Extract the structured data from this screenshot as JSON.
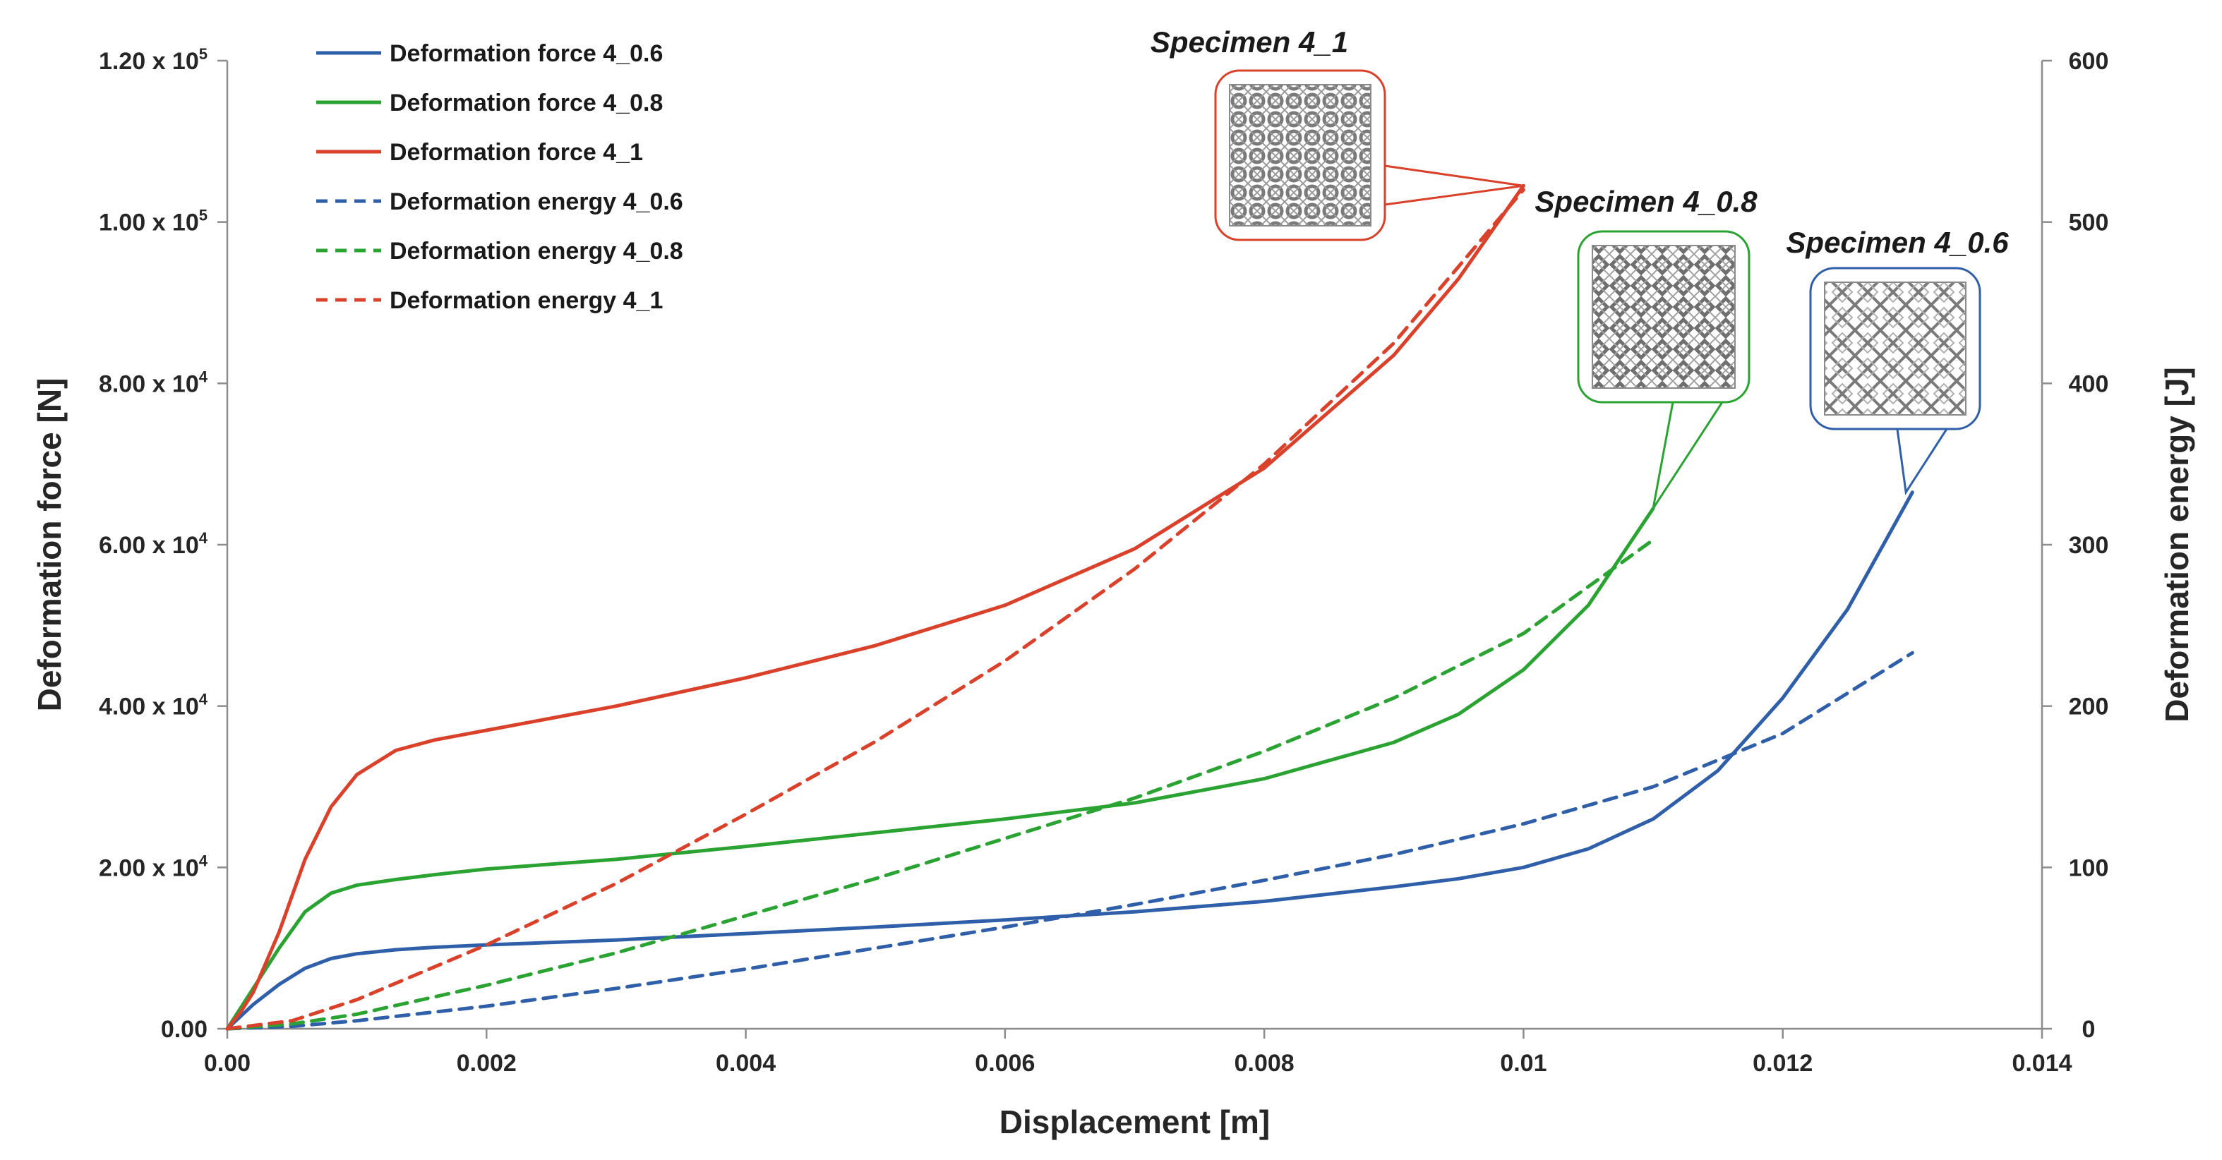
{
  "chart_data": {
    "type": "line",
    "xlabel": "Displacement [m]",
    "ylabel": "Deformation force [N]",
    "y2label": "Deformation energy [J]",
    "xlim": [
      0,
      0.014
    ],
    "ylim": [
      0,
      120000
    ],
    "y2lim": [
      0,
      600
    ],
    "x_ticks": [
      0,
      0.002,
      0.004,
      0.006,
      0.008,
      0.01,
      0.012,
      0.014
    ],
    "x_tick_labels": [
      "0.00",
      "0.002",
      "0.004",
      "0.006",
      "0.008",
      "0.01",
      "0.012",
      "0.014"
    ],
    "y_ticks": [
      0,
      20000,
      40000,
      60000,
      80000,
      100000,
      120000
    ],
    "y_tick_labels": [
      {
        "mant": "0.00",
        "exp": ""
      },
      {
        "mant": "2.00 x 10",
        "exp": "4"
      },
      {
        "mant": "4.00 x 10",
        "exp": "4"
      },
      {
        "mant": "6.00 x 10",
        "exp": "4"
      },
      {
        "mant": "8.00 x 10",
        "exp": "4"
      },
      {
        "mant": "1.00 x 10",
        "exp": "5"
      },
      {
        "mant": "1.20 x 10",
        "exp": "5"
      }
    ],
    "y2_ticks": [
      0,
      100,
      200,
      300,
      400,
      500,
      600
    ],
    "y2_tick_labels": [
      "0",
      "100",
      "200",
      "300",
      "400",
      "500",
      "600"
    ],
    "legend_position": "top-left",
    "series": [
      {
        "name": "Deformation force 4_0.6",
        "axis": "left",
        "style": "solid",
        "color": "#2f5fa8",
        "points": [
          [
            0,
            0
          ],
          [
            0.0001,
            1500
          ],
          [
            0.0002,
            3000
          ],
          [
            0.0004,
            5500
          ],
          [
            0.0006,
            7500
          ],
          [
            0.0008,
            8700
          ],
          [
            0.001,
            9300
          ],
          [
            0.0013,
            9800
          ],
          [
            0.0016,
            10100
          ],
          [
            0.002,
            10400
          ],
          [
            0.003,
            11000
          ],
          [
            0.004,
            11800
          ],
          [
            0.005,
            12600
          ],
          [
            0.006,
            13500
          ],
          [
            0.007,
            14500
          ],
          [
            0.008,
            15800
          ],
          [
            0.009,
            17600
          ],
          [
            0.0095,
            18600
          ],
          [
            0.01,
            20000
          ],
          [
            0.0105,
            22300
          ],
          [
            0.011,
            26000
          ],
          [
            0.0115,
            32000
          ],
          [
            0.012,
            41000
          ],
          [
            0.0125,
            52000
          ],
          [
            0.013,
            66500
          ]
        ]
      },
      {
        "name": "Deformation force 4_0.8",
        "axis": "left",
        "style": "solid",
        "color": "#2aa333",
        "points": [
          [
            0,
            0
          ],
          [
            0.0001,
            2500
          ],
          [
            0.0002,
            5000
          ],
          [
            0.0004,
            10000
          ],
          [
            0.0006,
            14500
          ],
          [
            0.0008,
            16800
          ],
          [
            0.001,
            17800
          ],
          [
            0.0013,
            18500
          ],
          [
            0.0016,
            19100
          ],
          [
            0.002,
            19800
          ],
          [
            0.003,
            21000
          ],
          [
            0.004,
            22600
          ],
          [
            0.005,
            24300
          ],
          [
            0.006,
            26000
          ],
          [
            0.007,
            28000
          ],
          [
            0.008,
            31000
          ],
          [
            0.009,
            35500
          ],
          [
            0.0095,
            39000
          ],
          [
            0.01,
            44500
          ],
          [
            0.0105,
            52500
          ],
          [
            0.011,
            64500
          ]
        ]
      },
      {
        "name": "Deformation force 4_1",
        "axis": "left",
        "style": "solid",
        "color": "#d9412b",
        "points": [
          [
            0,
            0
          ],
          [
            0.0001,
            2000
          ],
          [
            0.0002,
            4500
          ],
          [
            0.0004,
            12000
          ],
          [
            0.0006,
            21000
          ],
          [
            0.0008,
            27500
          ],
          [
            0.001,
            31500
          ],
          [
            0.0013,
            34500
          ],
          [
            0.0016,
            35800
          ],
          [
            0.002,
            37000
          ],
          [
            0.003,
            40000
          ],
          [
            0.004,
            43500
          ],
          [
            0.005,
            47500
          ],
          [
            0.006,
            52500
          ],
          [
            0.007,
            59500
          ],
          [
            0.008,
            69500
          ],
          [
            0.009,
            83500
          ],
          [
            0.0095,
            93000
          ],
          [
            0.01,
            104500
          ]
        ]
      },
      {
        "name": "Deformation energy 4_0.6",
        "axis": "right",
        "style": "dashed",
        "color": "#2f5fa8",
        "points": [
          [
            0,
            0
          ],
          [
            0.0005,
            1.5
          ],
          [
            0.001,
            5
          ],
          [
            0.002,
            14
          ],
          [
            0.003,
            25
          ],
          [
            0.004,
            37
          ],
          [
            0.005,
            50
          ],
          [
            0.006,
            63
          ],
          [
            0.007,
            77
          ],
          [
            0.008,
            92
          ],
          [
            0.009,
            108
          ],
          [
            0.01,
            127
          ],
          [
            0.011,
            150
          ],
          [
            0.012,
            183
          ],
          [
            0.013,
            233
          ]
        ]
      },
      {
        "name": "Deformation energy 4_0.8",
        "axis": "right",
        "style": "dashed",
        "color": "#2aa333",
        "points": [
          [
            0,
            0
          ],
          [
            0.0005,
            3
          ],
          [
            0.001,
            9
          ],
          [
            0.002,
            27
          ],
          [
            0.003,
            47
          ],
          [
            0.004,
            70
          ],
          [
            0.005,
            93
          ],
          [
            0.006,
            118
          ],
          [
            0.007,
            143
          ],
          [
            0.008,
            172
          ],
          [
            0.009,
            205
          ],
          [
            0.01,
            245
          ],
          [
            0.011,
            303
          ]
        ]
      },
      {
        "name": "Deformation energy 4_1",
        "axis": "right",
        "style": "dashed",
        "color": "#d9412b",
        "points": [
          [
            0,
            0
          ],
          [
            0.0005,
            5
          ],
          [
            0.001,
            18
          ],
          [
            0.002,
            52
          ],
          [
            0.003,
            90
          ],
          [
            0.004,
            133
          ],
          [
            0.005,
            178
          ],
          [
            0.006,
            228
          ],
          [
            0.007,
            285
          ],
          [
            0.008,
            350
          ],
          [
            0.009,
            425
          ],
          [
            0.01,
            520
          ]
        ]
      }
    ],
    "annotations": [
      {
        "label": "Specimen 4_1",
        "color": "#d9412b",
        "target": [
          0.01,
          104500
        ],
        "pattern": "dense"
      },
      {
        "label": "Specimen 4_0.8",
        "color": "#2aa333",
        "target": [
          0.011,
          64500
        ],
        "pattern": "medium"
      },
      {
        "label": "Specimen 4_0.6",
        "color": "#2f5fa8",
        "target": [
          0.01295,
          66500
        ],
        "pattern": "open"
      }
    ]
  }
}
